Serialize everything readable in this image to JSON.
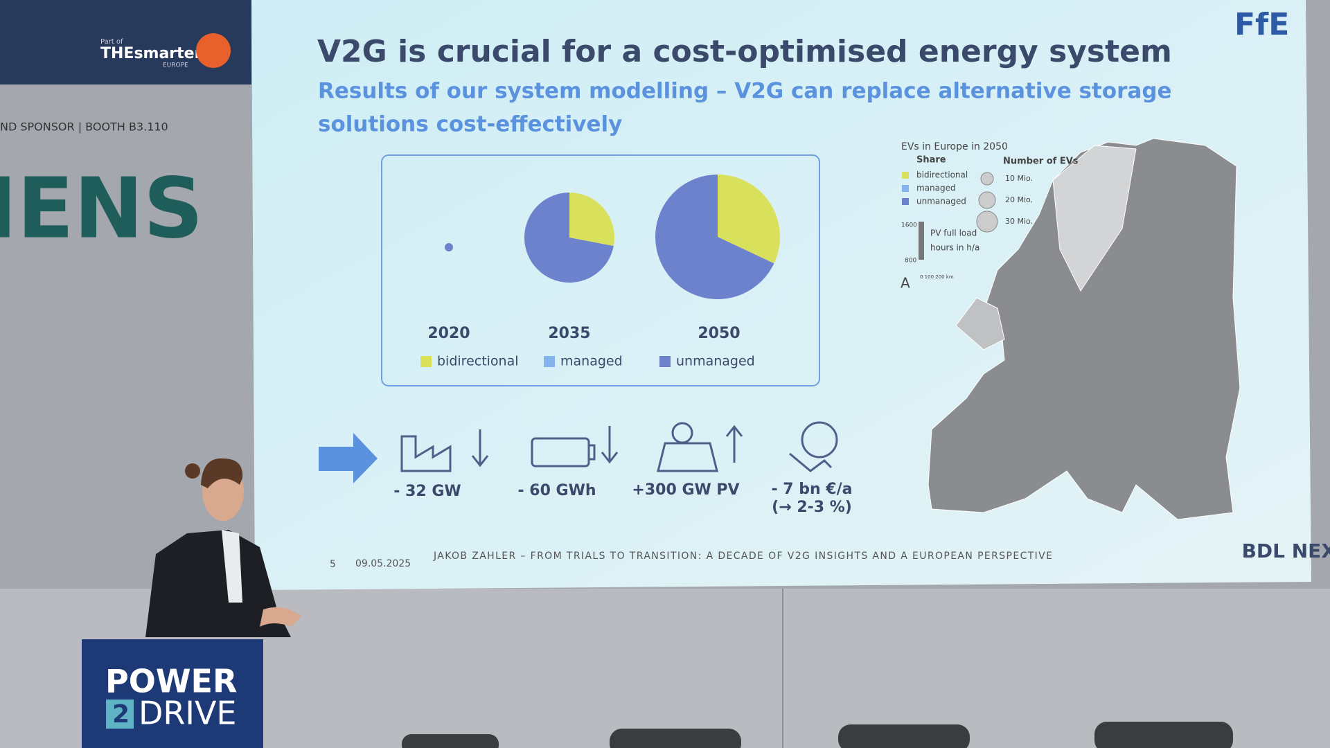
{
  "venue": {
    "brand_part_of": "Part of",
    "brand_name": "THEsmarter",
    "brand_sub": "EUROPE",
    "sponsor": "ND SPONSOR | BOOTH B3.110",
    "wall_logo": "IENS",
    "podium_line1": "POWER",
    "podium_num": "2",
    "podium_line2": "DRIVE"
  },
  "slide": {
    "logo_top": "FfE",
    "logo_bottom": "BDL NEXT",
    "title": "V2G is crucial for a cost-optimised energy system",
    "subtitle_line1": "Results of our system modelling – V2G can replace alternative storage",
    "subtitle_line2": "solutions cost-effectively",
    "pies": {
      "segment_names": [
        "bidirectional",
        "managed",
        "unmanaged"
      ],
      "colors": [
        "#d9e15c",
        "#84b4ee",
        "#6d82cc"
      ],
      "items": [
        {
          "year": "2020",
          "shares": [
            0,
            0,
            100
          ]
        },
        {
          "year": "2035",
          "shares": [
            28,
            0,
            72
          ]
        },
        {
          "year": "2050",
          "shares": [
            32,
            0,
            68
          ]
        }
      ]
    },
    "impacts": [
      "- 32 GW",
      "- 60 GWh",
      "+300 GW PV",
      "- 7 bn €/a"
    ],
    "impact_note": "(→ 2-3 %)",
    "map_legend": {
      "title": "EVs in Europe in 2050",
      "share": "Share",
      "number": "Number of EVs",
      "shares": [
        "bidirectional",
        "managed",
        "unmanaged"
      ],
      "sizes": [
        "10 Mio.",
        "20 Mio.",
        "30 Mio."
      ],
      "pv_max": "1600",
      "pv_min": "800",
      "pv_label1": "PV full load",
      "pv_label2": "hours in h/a",
      "scale": "0  100 200 km"
    },
    "footer": {
      "page": "5",
      "date": "09.05.2025",
      "text": "JAKOB ZAHLER – FROM TRIALS TO TRANSITION: A DECADE OF V2G INSIGHTS AND A EUROPEAN PERSPECTIVE"
    }
  }
}
